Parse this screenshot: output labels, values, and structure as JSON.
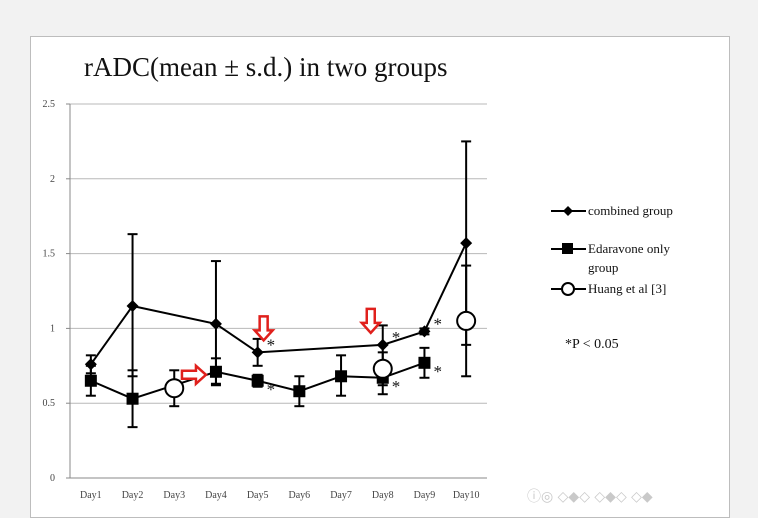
{
  "chart_data": {
    "type": "line",
    "title": "rADC(mean ± s.d.) in two groups",
    "categories": [
      "Day1",
      "Day2",
      "Day3",
      "Day4",
      "Day5",
      "Day6",
      "Day7",
      "Day8",
      "Day9",
      "Day10"
    ],
    "ylim": [
      0,
      2.5
    ],
    "yticks": [
      "0",
      "0.5",
      "1",
      "1.5",
      "2",
      "2.5"
    ],
    "grid": true,
    "legend_position": "right",
    "series": [
      {
        "name": "combined group",
        "marker": "diamond",
        "color": "#000000",
        "points": [
          {
            "x": "Day1",
            "y": 0.76,
            "low": 0.7,
            "high": 0.82
          },
          {
            "x": "Day2",
            "y": 1.15,
            "low": 0.68,
            "high": 1.63
          },
          {
            "x": "Day4",
            "y": 1.03,
            "low": 0.63,
            "high": 1.45
          },
          {
            "x": "Day5",
            "y": 0.84,
            "low": 0.75,
            "high": 0.93
          },
          {
            "x": "Day8",
            "y": 0.89,
            "low": 0.76,
            "high": 1.02
          },
          {
            "x": "Day9",
            "y": 0.98,
            "low": 0.96,
            "high": 1.0
          },
          {
            "x": "Day10",
            "y": 1.57,
            "low": 0.89,
            "high": 2.25
          }
        ]
      },
      {
        "name": "Edaravone only group",
        "marker": "square",
        "color": "#000000",
        "points": [
          {
            "x": "Day1",
            "y": 0.65,
            "low": 0.55,
            "high": 0.75
          },
          {
            "x": "Day2",
            "y": 0.53,
            "low": 0.34,
            "high": 0.72
          },
          {
            "x": "Day4",
            "y": 0.71,
            "low": 0.62,
            "high": 0.8
          },
          {
            "x": "Day5",
            "y": 0.65,
            "low": 0.61,
            "high": 0.69
          },
          {
            "x": "Day6",
            "y": 0.58,
            "low": 0.48,
            "high": 0.68
          },
          {
            "x": "Day7",
            "y": 0.68,
            "low": 0.55,
            "high": 0.82
          },
          {
            "x": "Day8",
            "y": 0.67,
            "low": 0.56,
            "high": 0.78
          },
          {
            "x": "Day9",
            "y": 0.77,
            "low": 0.67,
            "high": 0.87
          }
        ]
      },
      {
        "name": "Huang et al [3]",
        "marker": "open-circle",
        "color": "#000000",
        "points": [
          {
            "x": "Day3",
            "y": 0.6,
            "low": 0.48,
            "high": 0.72
          },
          {
            "x": "Day8",
            "y": 0.73,
            "low": 0.62,
            "high": 0.84
          },
          {
            "x": "Day10",
            "y": 1.05,
            "low": 0.68,
            "high": 1.42
          }
        ]
      }
    ],
    "significance_markers": [
      {
        "x": "Day5",
        "series": "combined group",
        "label": "*"
      },
      {
        "x": "Day5",
        "series": "Edaravone only group",
        "label": "*"
      },
      {
        "x": "Day8",
        "series": "combined group",
        "label": "*"
      },
      {
        "x": "Day8",
        "series": "Edaravone only group",
        "label": "*"
      },
      {
        "x": "Day9",
        "series": "combined group",
        "label": "*"
      },
      {
        "x": "Day9",
        "series": "Edaravone only group",
        "label": "*"
      }
    ],
    "annotation": "*P < 0.05",
    "arrows": [
      {
        "x": "Day4",
        "direction": "right",
        "color": "#e0201c"
      },
      {
        "x": "Day5",
        "direction": "down",
        "color": "#e0201c"
      },
      {
        "x": "Day8",
        "direction": "down",
        "color": "#e0201c"
      }
    ]
  },
  "legend": {
    "combined": "combined group",
    "edaravone_line1": "Edaravone only",
    "edaravone_line2": "group",
    "huang": "Huang et al [3]"
  }
}
